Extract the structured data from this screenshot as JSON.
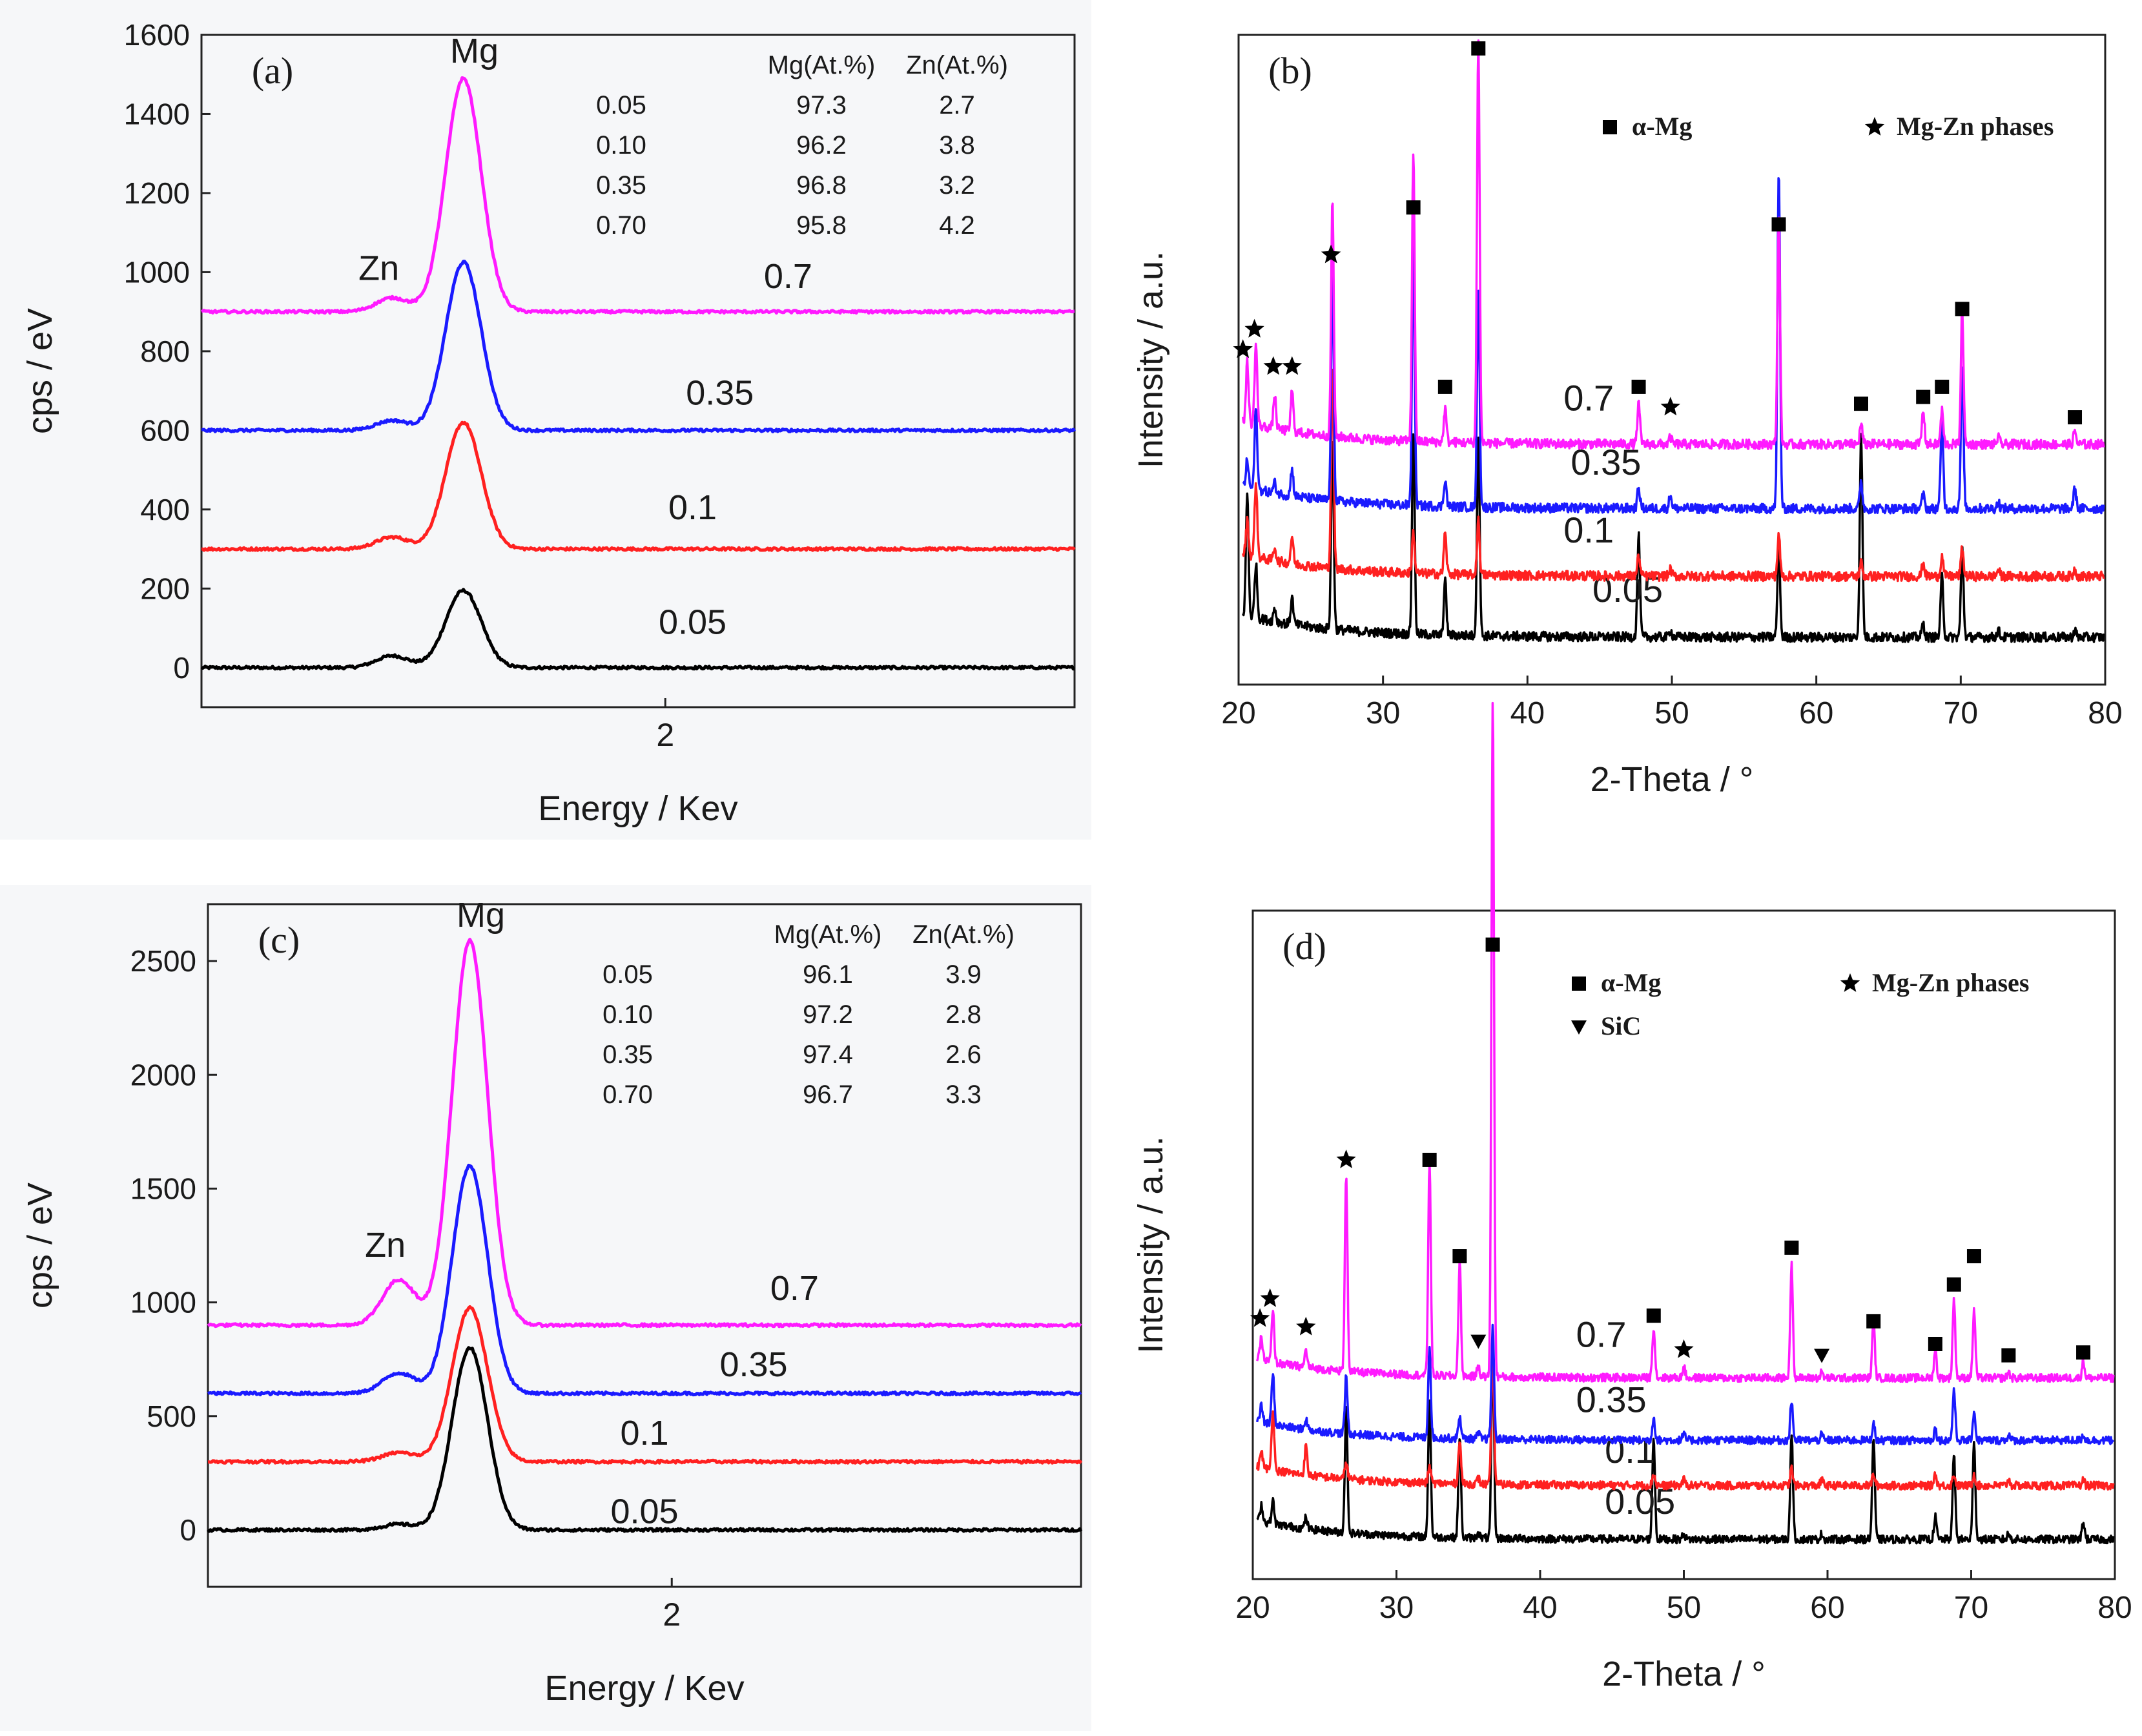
{
  "chart_data": [
    {
      "id": "a",
      "type": "line",
      "panel_label": "(a)",
      "xlabel": "Energy / Kev",
      "ylabel": "cps / eV",
      "xlim": [
        0.3,
        3.5
      ],
      "ylim": [
        -100,
        1600
      ],
      "xticks": [
        {
          "value": 2,
          "label": "2"
        }
      ],
      "yticks": [
        {
          "value": 0,
          "label": "0"
        },
        {
          "value": 200,
          "label": "200"
        },
        {
          "value": 400,
          "label": "400"
        },
        {
          "value": 600,
          "label": "600"
        },
        {
          "value": 800,
          "label": "800"
        },
        {
          "value": 1000,
          "label": "1000"
        },
        {
          "value": 1200,
          "label": "1200"
        },
        {
          "value": 1400,
          "label": "1400"
        },
        {
          "value": 1600,
          "label": "1600"
        }
      ],
      "peak_labels": [
        {
          "text": "Mg",
          "x": 1.3,
          "y": 1530
        },
        {
          "text": "Zn",
          "x": 0.95,
          "y": 980
        }
      ],
      "series": [
        {
          "name": "0.05",
          "color": "#000000",
          "baseline": 0,
          "zn_peak": 30,
          "mg_peak": 195,
          "label_x": 2.1,
          "label_y": 85
        },
        {
          "name": "0.1",
          "color": "#ff2020",
          "baseline": 300,
          "zn_peak": 330,
          "mg_peak": 620,
          "label_x": 2.1,
          "label_y": 375
        },
        {
          "name": "0.35",
          "color": "#1a1aff",
          "baseline": 600,
          "zn_peak": 625,
          "mg_peak": 1025,
          "label_x": 2.2,
          "label_y": 665
        },
        {
          "name": "0.7",
          "color": "#ff1aff",
          "baseline": 900,
          "zn_peak": 935,
          "mg_peak": 1490,
          "label_x": 2.45,
          "label_y": 960
        }
      ],
      "table": {
        "headers": [
          "",
          "Mg(At.%)",
          "Zn(At.%)"
        ],
        "rows": [
          [
            "0.05",
            "97.3",
            "2.7"
          ],
          [
            "0.10",
            "96.2",
            "3.8"
          ],
          [
            "0.35",
            "96.8",
            "3.2"
          ],
          [
            "0.70",
            "95.8",
            "4.2"
          ]
        ]
      }
    },
    {
      "id": "b",
      "type": "line",
      "panel_label": "(b)",
      "xlabel": "2-Theta / °",
      "ylabel": "Intensity / a.u.",
      "xlim": [
        20,
        80
      ],
      "xticks": [
        {
          "value": 20,
          "label": "20"
        },
        {
          "value": 30,
          "label": "30"
        },
        {
          "value": 40,
          "label": "40"
        },
        {
          "value": 50,
          "label": "50"
        },
        {
          "value": 60,
          "label": "60"
        },
        {
          "value": 70,
          "label": "70"
        },
        {
          "value": 80,
          "label": "80"
        }
      ],
      "legend": [
        {
          "marker": "square",
          "text": "α-Mg"
        },
        {
          "marker": "star",
          "text": "Mg-Zn phases"
        }
      ],
      "series": [
        {
          "name": "0.05",
          "color": "#000000",
          "baseline": 0.1,
          "label_x": 44.5,
          "label_y": 0.62
        },
        {
          "name": "0.1",
          "color": "#ff2020",
          "baseline": 1.0,
          "label_x": 42.5,
          "label_y": 1.5
        },
        {
          "name": "0.35",
          "color": "#1a1aff",
          "baseline": 2.0,
          "label_x": 43.0,
          "label_y": 2.5
        },
        {
          "name": "0.7",
          "color": "#ff1aff",
          "baseline": 2.95,
          "label_x": 42.5,
          "label_y": 3.45
        }
      ],
      "peaks": [
        {
          "x": 20.6,
          "h": [
            1.8,
            0.5,
            0.4,
            0.9
          ]
        },
        {
          "x": 21.2,
          "h": [
            0.8,
            1.1,
            1.2,
            1.2
          ]
        },
        {
          "x": 22.5,
          "h": [
            0.2,
            0.2,
            0.15,
            0.5
          ]
        },
        {
          "x": 23.7,
          "h": [
            0.4,
            0.4,
            0.4,
            0.6
          ]
        },
        {
          "x": 26.5,
          "h": [
            2.8,
            3.0,
            3.4,
            3.5
          ]
        },
        {
          "x": 32.1,
          "h": [
            3.0,
            0.6,
            3.9,
            4.3
          ]
        },
        {
          "x": 34.3,
          "h": [
            0.8,
            0.6,
            0.4,
            0.5
          ]
        },
        {
          "x": 36.6,
          "h": [
            3.0,
            0.8,
            3.2,
            6.0
          ]
        },
        {
          "x": 47.7,
          "h": [
            1.5,
            0.3,
            0.3,
            0.6
          ]
        },
        {
          "x": 49.9,
          "h": [
            0.1,
            0.1,
            0.2,
            0.1
          ]
        },
        {
          "x": 57.4,
          "h": [
            1.4,
            0.6,
            5.0,
            3.4
          ]
        },
        {
          "x": 63.1,
          "h": [
            3.0,
            0.2,
            0.4,
            0.3
          ]
        },
        {
          "x": 67.4,
          "h": [
            0.2,
            0.2,
            0.2,
            0.5
          ]
        },
        {
          "x": 68.7,
          "h": [
            0.9,
            0.3,
            1.3,
            0.5
          ]
        },
        {
          "x": 70.1,
          "h": [
            1.3,
            0.4,
            2.1,
            2.0
          ]
        },
        {
          "x": 72.6,
          "h": [
            0.1,
            0.1,
            0.1,
            0.1
          ]
        },
        {
          "x": 77.9,
          "h": [
            0.1,
            0.1,
            0.3,
            0.2
          ]
        }
      ],
      "markers": [
        {
          "type": "star",
          "x": 20.3,
          "y": 4.35
        },
        {
          "type": "star",
          "x": 21.1,
          "y": 4.65
        },
        {
          "type": "star",
          "x": 22.4,
          "y": 4.1
        },
        {
          "type": "star",
          "x": 23.7,
          "y": 4.1
        },
        {
          "type": "star",
          "x": 26.4,
          "y": 5.75
        },
        {
          "type": "square",
          "x": 32.1,
          "y": 6.45
        },
        {
          "type": "square",
          "x": 34.3,
          "y": 3.8
        },
        {
          "type": "square",
          "x": 36.6,
          "y": 8.8
        },
        {
          "type": "square",
          "x": 47.7,
          "y": 3.8
        },
        {
          "type": "star",
          "x": 49.9,
          "y": 3.5
        },
        {
          "type": "square",
          "x": 57.4,
          "y": 6.2
        },
        {
          "type": "square",
          "x": 63.1,
          "y": 3.55
        },
        {
          "type": "square",
          "x": 67.4,
          "y": 3.65
        },
        {
          "type": "square",
          "x": 68.7,
          "y": 3.8
        },
        {
          "type": "square",
          "x": 70.1,
          "y": 4.95
        },
        {
          "type": "square",
          "x": 77.9,
          "y": 3.35
        }
      ]
    },
    {
      "id": "c",
      "type": "line",
      "panel_label": "(c)",
      "xlabel": "Energy / Kev",
      "ylabel": "cps / eV",
      "xlim": [
        0.3,
        3.5
      ],
      "ylim": [
        -250,
        2750
      ],
      "xticks": [
        {
          "value": 2,
          "label": "2"
        }
      ],
      "yticks": [
        {
          "value": 0,
          "label": "0"
        },
        {
          "value": 500,
          "label": "500"
        },
        {
          "value": 1000,
          "label": "1000"
        },
        {
          "value": 1500,
          "label": "1500"
        },
        {
          "value": 2000,
          "label": "2000"
        },
        {
          "value": 2500,
          "label": "2500"
        }
      ],
      "peak_labels": [
        {
          "text": "Mg",
          "x": 1.3,
          "y": 2650
        },
        {
          "text": "Zn",
          "x": 0.95,
          "y": 1200
        }
      ],
      "series": [
        {
          "name": "0.05",
          "color": "#000000",
          "baseline": 0,
          "zn_peak": 25,
          "mg_peak": 800,
          "label_x": 1.9,
          "label_y": 30
        },
        {
          "name": "0.1",
          "color": "#ff2020",
          "baseline": 300,
          "zn_peak": 340,
          "mg_peak": 975,
          "label_x": 1.9,
          "label_y": 375
        },
        {
          "name": "0.35",
          "color": "#1a1aff",
          "baseline": 600,
          "zn_peak": 690,
          "mg_peak": 1600,
          "label_x": 2.3,
          "label_y": 675
        },
        {
          "name": "0.7",
          "color": "#ff1aff",
          "baseline": 900,
          "zn_peak": 1100,
          "mg_peak": 2590,
          "label_x": 2.45,
          "label_y": 1010
        }
      ],
      "table": {
        "headers": [
          "",
          "Mg(At.%)",
          "Zn(At.%)"
        ],
        "rows": [
          [
            "0.05",
            "96.1",
            "3.9"
          ],
          [
            "0.10",
            "97.2",
            "2.8"
          ],
          [
            "0.35",
            "97.4",
            "2.6"
          ],
          [
            "0.70",
            "96.7",
            "3.3"
          ]
        ]
      }
    },
    {
      "id": "d",
      "type": "line",
      "panel_label": "(d)",
      "xlabel": "2-Theta / °",
      "ylabel": "Intensity / a.u.",
      "xlim": [
        20,
        80
      ],
      "xticks": [
        {
          "value": 20,
          "label": "20"
        },
        {
          "value": 30,
          "label": "30"
        },
        {
          "value": 40,
          "label": "40"
        },
        {
          "value": 50,
          "label": "50"
        },
        {
          "value": 60,
          "label": "60"
        },
        {
          "value": 70,
          "label": "70"
        },
        {
          "value": 80,
          "label": "80"
        }
      ],
      "legend": [
        {
          "marker": "square",
          "text": "α-Mg"
        },
        {
          "marker": "star",
          "text": "Mg-Zn phases"
        },
        {
          "marker": "triangle",
          "text": "SiC"
        }
      ],
      "series": [
        {
          "name": "0.05",
          "color": "#000000",
          "baseline": 0.1,
          "label_x": 44.5,
          "label_y": 0.55
        },
        {
          "name": "0.1",
          "color": "#ff2020",
          "baseline": 1.05,
          "label_x": 44.5,
          "label_y": 1.45
        },
        {
          "name": "0.35",
          "color": "#1a1aff",
          "baseline": 1.85,
          "label_x": 42.5,
          "label_y": 2.35
        },
        {
          "name": "0.7",
          "color": "#ff1aff",
          "baseline": 2.95,
          "label_x": 42.5,
          "label_y": 3.5
        }
      ],
      "peaks": [
        {
          "x": 20.6,
          "h": [
            0.3,
            0.3,
            0.3,
            0.4
          ]
        },
        {
          "x": 21.4,
          "h": [
            0.4,
            1.1,
            0.9,
            0.9
          ]
        },
        {
          "x": 23.7,
          "h": [
            0.2,
            0.5,
            0.2,
            0.3
          ]
        },
        {
          "x": 26.5,
          "h": [
            2.2,
            0.3,
            1.0,
            3.5
          ]
        },
        {
          "x": 32.3,
          "h": [
            2.4,
            0.3,
            1.6,
            3.8
          ]
        },
        {
          "x": 34.4,
          "h": [
            1.8,
            0.8,
            0.4,
            2.0
          ]
        },
        {
          "x": 35.7,
          "h": [
            0.1,
            0.1,
            0.1,
            0.2
          ]
        },
        {
          "x": 36.7,
          "h": [
            3.5,
            2.5,
            2.0,
            12.0
          ]
        },
        {
          "x": 47.9,
          "h": [
            1.8,
            0.2,
            0.4,
            0.9
          ]
        },
        {
          "x": 50.0,
          "h": [
            0.1,
            0.1,
            0.1,
            0.2
          ]
        },
        {
          "x": 57.5,
          "h": [
            1.9,
            0.3,
            0.7,
            2.0
          ]
        },
        {
          "x": 59.6,
          "h": [
            0.1,
            0.1,
            0.1,
            0.1
          ]
        },
        {
          "x": 63.2,
          "h": [
            1.8,
            0.2,
            0.3,
            1.0
          ]
        },
        {
          "x": 67.5,
          "h": [
            0.4,
            0.2,
            0.2,
            0.5
          ]
        },
        {
          "x": 68.8,
          "h": [
            1.5,
            0.2,
            0.9,
            1.4
          ]
        },
        {
          "x": 70.2,
          "h": [
            1.7,
            0.2,
            0.5,
            1.2
          ]
        },
        {
          "x": 72.6,
          "h": [
            0.1,
            0.1,
            0.1,
            0.1
          ]
        },
        {
          "x": 77.8,
          "h": [
            0.3,
            0.1,
            0.1,
            0.3
          ]
        }
      ],
      "markers": [
        {
          "type": "star",
          "x": 20.5,
          "y": 4.0
        },
        {
          "type": "star",
          "x": 21.2,
          "y": 4.35
        },
        {
          "type": "star",
          "x": 23.7,
          "y": 3.85
        },
        {
          "type": "star",
          "x": 26.5,
          "y": 6.8
        },
        {
          "type": "square",
          "x": 32.3,
          "y": 6.8
        },
        {
          "type": "square",
          "x": 34.4,
          "y": 5.1
        },
        {
          "type": "triangle",
          "x": 35.7,
          "y": 3.6
        },
        {
          "type": "square",
          "x": 36.7,
          "y": 10.6
        },
        {
          "type": "square",
          "x": 47.9,
          "y": 4.05
        },
        {
          "type": "star",
          "x": 50.0,
          "y": 3.45
        },
        {
          "type": "square",
          "x": 57.5,
          "y": 5.25
        },
        {
          "type": "triangle",
          "x": 59.6,
          "y": 3.35
        },
        {
          "type": "square",
          "x": 63.2,
          "y": 3.95
        },
        {
          "type": "square",
          "x": 67.5,
          "y": 3.55
        },
        {
          "type": "square",
          "x": 68.8,
          "y": 4.6
        },
        {
          "type": "square",
          "x": 70.2,
          "y": 5.1
        },
        {
          "type": "square",
          "x": 72.6,
          "y": 3.35
        },
        {
          "type": "square",
          "x": 77.8,
          "y": 3.4
        }
      ]
    }
  ]
}
